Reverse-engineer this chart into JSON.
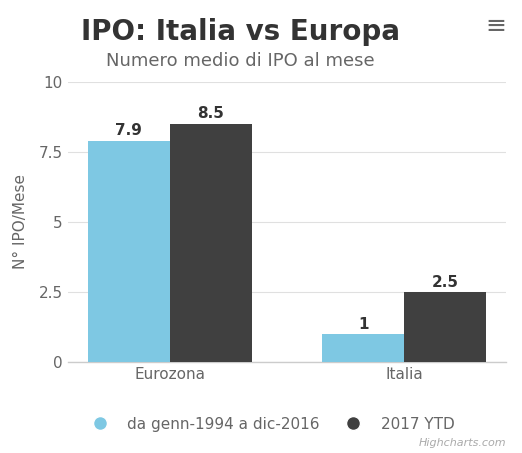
{
  "title": "IPO: Italia vs Europa",
  "subtitle": "Numero medio di IPO al mese",
  "categories": [
    "Eurozona",
    "Italia"
  ],
  "series": [
    {
      "name": "da genn-1994 a dic-2016",
      "values": [
        7.9,
        1.0
      ],
      "color": "#7ec8e3"
    },
    {
      "name": "2017 YTD",
      "values": [
        8.5,
        2.5
      ],
      "color": "#404040"
    }
  ],
  "ylabel": "N° IPO/Mese",
  "ylim": [
    0,
    10
  ],
  "yticks": [
    0,
    2.5,
    5,
    7.5,
    10
  ],
  "ytick_labels": [
    "0",
    "2.5",
    "5",
    "7.5",
    "10"
  ],
  "bar_width": 0.35,
  "background_color": "#ffffff",
  "title_fontsize": 20,
  "subtitle_fontsize": 13,
  "ylabel_fontsize": 11,
  "tick_fontsize": 11,
  "legend_fontsize": 11,
  "value_label_fontsize": 11,
  "title_color": "#333333",
  "subtitle_color": "#666666",
  "axis_color": "#cccccc",
  "tick_color": "#666666",
  "value_label_color": "#333333",
  "grid_color": "#e0e0e0",
  "highcharts_text": "Highcharts.com",
  "menu_icon_color": "#666666"
}
